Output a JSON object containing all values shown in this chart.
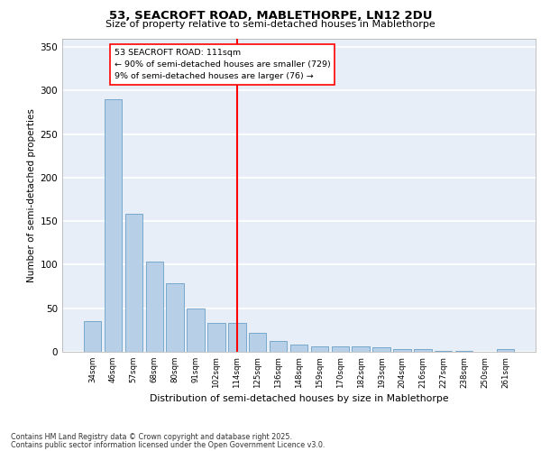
{
  "title1": "53, SEACROFT ROAD, MABLETHORPE, LN12 2DU",
  "title2": "Size of property relative to semi-detached houses in Mablethorpe",
  "xlabel": "Distribution of semi-detached houses by size in Mablethorpe",
  "ylabel": "Number of semi-detached properties",
  "categories": [
    "34sqm",
    "46sqm",
    "57sqm",
    "68sqm",
    "80sqm",
    "91sqm",
    "102sqm",
    "114sqm",
    "125sqm",
    "136sqm",
    "148sqm",
    "159sqm",
    "170sqm",
    "182sqm",
    "193sqm",
    "204sqm",
    "216sqm",
    "227sqm",
    "238sqm",
    "250sqm",
    "261sqm"
  ],
  "values": [
    35,
    290,
    158,
    104,
    79,
    50,
    33,
    33,
    22,
    12,
    8,
    6,
    6,
    6,
    5,
    3,
    3,
    1,
    1,
    0,
    3
  ],
  "bar_color": "#b8cfe8",
  "bar_edge_color": "#6a9fc8",
  "property_line": "53 SEACROFT ROAD: 111sqm",
  "annotation_line2": "← 90% of semi-detached houses are smaller (729)",
  "annotation_line3": "9% of semi-detached houses are larger (76) →",
  "ylim": [
    0,
    360
  ],
  "yticks": [
    0,
    50,
    100,
    150,
    200,
    250,
    300,
    350
  ],
  "background_color": "#e8eef8",
  "grid_color": "#ffffff",
  "footer1": "Contains HM Land Registry data © Crown copyright and database right 2025.",
  "footer2": "Contains public sector information licensed under the Open Government Licence v3.0."
}
